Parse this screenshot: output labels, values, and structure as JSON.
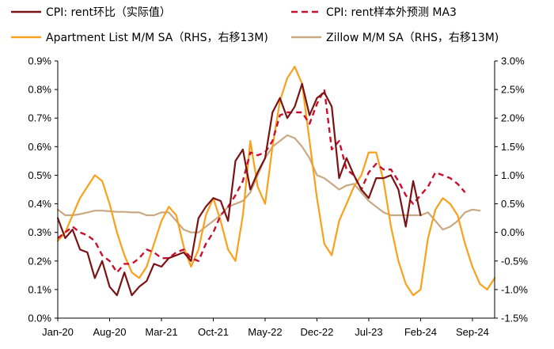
{
  "chart_data": {
    "type": "line",
    "title": "",
    "xlabel": "",
    "ylabel": "",
    "grid": false,
    "legend_position": "top",
    "x_tick_labels": [
      "Jan-20",
      "Aug-20",
      "Mar-21",
      "Oct-21",
      "May-22",
      "Dec-22",
      "Jul-23",
      "Feb-24",
      "Sep-24"
    ],
    "x_range": [
      0,
      59
    ],
    "x_tick_positions": [
      0,
      7,
      14,
      21,
      28,
      35,
      42,
      49,
      56
    ],
    "left_axis": {
      "ylim": [
        0.0,
        0.9
      ],
      "ticks": [
        0.0,
        0.1,
        0.2,
        0.3,
        0.4,
        0.5,
        0.6,
        0.7,
        0.8,
        0.9
      ],
      "tick_labels": [
        "0.0%",
        "0.1%",
        "0.2%",
        "0.3%",
        "0.4%",
        "0.5%",
        "0.6%",
        "0.7%",
        "0.8%",
        "0.9%"
      ]
    },
    "right_axis": {
      "ylim": [
        -1.5,
        3.0
      ],
      "ticks": [
        -1.5,
        -1.0,
        -0.5,
        0.0,
        0.5,
        1.0,
        1.5,
        2.0,
        2.5,
        3.0
      ],
      "tick_labels": [
        "-1.5%",
        "-1.0%",
        "-0.5%",
        "0.0%",
        "0.5%",
        "1.0%",
        "1.5%",
        "2.0%",
        "2.5%",
        "3.0%"
      ]
    },
    "series": [
      {
        "name": "CPI: rent环比（实际值）",
        "color": "#7B1315",
        "style": "solid",
        "axis": "left",
        "x_start": 0,
        "values": [
          0.35,
          0.28,
          0.31,
          0.24,
          0.23,
          0.14,
          0.2,
          0.11,
          0.08,
          0.16,
          0.08,
          0.11,
          0.13,
          0.19,
          0.18,
          0.21,
          0.22,
          0.23,
          0.2,
          0.35,
          0.39,
          0.42,
          0.41,
          0.34,
          0.55,
          0.59,
          0.45,
          0.51,
          0.56,
          0.72,
          0.77,
          0.7,
          0.74,
          0.82,
          0.71,
          0.77,
          0.79,
          0.74,
          0.49,
          0.56,
          0.5,
          0.45,
          0.42,
          0.49,
          0.49,
          0.5,
          0.45,
          0.32,
          0.48,
          0.36
        ]
      },
      {
        "name": "CPI: rent样本外预测 MA3",
        "color": "#C8102E",
        "style": "dashed",
        "axis": "left",
        "x_start": 0,
        "values": [
          0.28,
          0.3,
          0.32,
          0.3,
          0.29,
          0.27,
          0.22,
          0.2,
          0.16,
          0.19,
          0.19,
          0.21,
          0.24,
          0.23,
          0.21,
          0.21,
          0.23,
          0.24,
          0.21,
          0.2,
          0.26,
          0.3,
          0.36,
          0.39,
          0.43,
          0.48,
          0.58,
          0.57,
          0.58,
          0.62,
          0.71,
          0.72,
          0.72,
          0.72,
          0.68,
          0.75,
          0.8,
          0.59,
          0.62,
          0.52,
          0.5,
          0.45,
          0.51,
          0.54,
          0.52,
          0.52,
          0.48,
          0.43,
          0.4,
          0.43,
          0.46,
          0.51,
          0.5,
          0.49,
          0.47,
          0.44
        ]
      },
      {
        "name": "Apartment List  M/M SA（RHS，右移13M)",
        "color": "#F9A11B",
        "style": "solid",
        "axis": "right",
        "x_start": 0,
        "values": [
          -0.15,
          0.0,
          0.3,
          0.6,
          0.8,
          1.0,
          0.9,
          0.5,
          0.0,
          -0.4,
          -0.7,
          -0.8,
          -0.6,
          -0.2,
          0.2,
          0.45,
          0.3,
          -0.25,
          -0.6,
          -0.3,
          0.3,
          0.6,
          0.2,
          -0.3,
          -0.5,
          0.3,
          1.6,
          0.8,
          0.5,
          1.5,
          2.3,
          2.7,
          2.9,
          2.6,
          1.6,
          0.6,
          -0.2,
          -0.4,
          0.2,
          0.5,
          0.8,
          1.0,
          1.4,
          1.4,
          0.9,
          0.1,
          -0.5,
          -0.9,
          -1.1,
          -1.0,
          -0.1,
          0.4,
          0.6,
          0.5,
          0.3,
          -0.2,
          -0.6,
          -0.9,
          -1.0,
          -0.8
        ]
      },
      {
        "name": "Zillow M/M SA（RHS，右移13M)",
        "color": "#C9A982",
        "style": "solid",
        "axis": "right",
        "x_start": 0,
        "values": [
          0.4,
          0.3,
          0.3,
          0.32,
          0.35,
          0.38,
          0.38,
          0.37,
          0.36,
          0.36,
          0.35,
          0.35,
          0.3,
          0.3,
          0.35,
          0.35,
          0.2,
          0.05,
          0.0,
          0.0,
          0.1,
          0.2,
          0.3,
          0.45,
          0.5,
          0.55,
          0.7,
          1.0,
          1.3,
          1.5,
          1.6,
          1.7,
          1.65,
          1.5,
          1.3,
          1.0,
          0.95,
          0.85,
          0.75,
          0.82,
          0.85,
          0.7,
          0.55,
          0.45,
          0.35,
          0.3,
          0.3,
          0.3,
          0.3,
          0.3,
          0.35,
          0.2,
          0.05,
          0.1,
          0.2,
          0.35,
          0.4,
          0.38
        ]
      }
    ]
  }
}
